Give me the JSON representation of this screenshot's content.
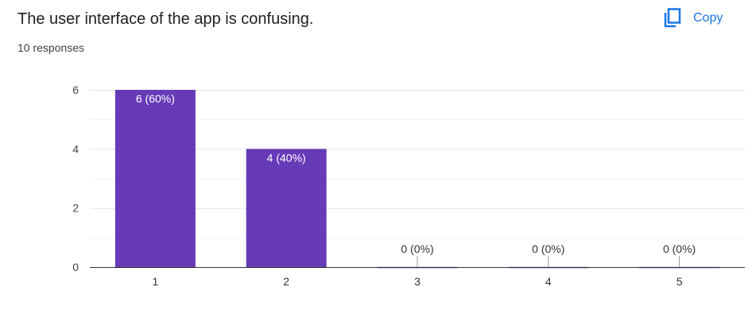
{
  "question": {
    "title": "The user interface of the app is confusing.",
    "responses": "10 responses"
  },
  "toolbar": {
    "copy_label": "Copy"
  },
  "icons": {
    "copy": "copy-icon"
  },
  "colors": {
    "bar": "#673ab7",
    "accent": "#1a73e8",
    "grid": "#ebebeb",
    "axis": "#333333"
  },
  "chart_data": {
    "type": "bar",
    "categories": [
      "1",
      "2",
      "3",
      "4",
      "5"
    ],
    "values": [
      6,
      4,
      0,
      0,
      0
    ],
    "labels": [
      "6 (60%)",
      "4 (40%)",
      "0 (0%)",
      "0 (0%)",
      "0 (0%)"
    ],
    "yticks": [
      "0",
      "2",
      "4",
      "6"
    ],
    "ylim": [
      0,
      6
    ],
    "grid": true
  }
}
